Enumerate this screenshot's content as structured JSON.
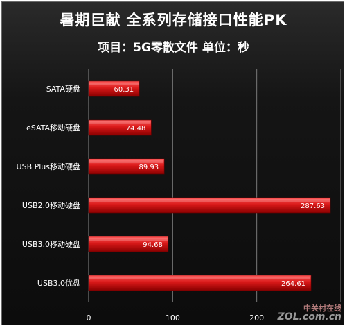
{
  "chart_data": {
    "type": "bar",
    "orientation": "horizontal",
    "title": "暑期巨献 全系列存储接口性能PK",
    "subtitle": "项目：5G零散文件 单位：秒",
    "categories": [
      "SATA硬盘",
      "eSATA移动硬盘",
      "USB Plus移动硬盘",
      "USB2.0移动硬盘",
      "USB3.0移动硬盘",
      "USB3.0优盘"
    ],
    "series": [
      {
        "values": [
          60.31,
          74.48,
          89.93,
          287.63,
          94.68,
          264.61
        ]
      }
    ],
    "value_labels": [
      "60.31",
      "74.48",
      "89.93",
      "287.63",
      "94.68",
      "264.61"
    ],
    "xlim": [
      0,
      300
    ],
    "x_ticks": [
      0,
      100,
      200
    ],
    "x_tick_labels": [
      "0",
      "100",
      "200"
    ],
    "grid": true,
    "bar_color": "#d01010",
    "background": "#111111"
  },
  "watermark": {
    "line1": "中关村在线",
    "line2": "ZOL.com.cn"
  }
}
